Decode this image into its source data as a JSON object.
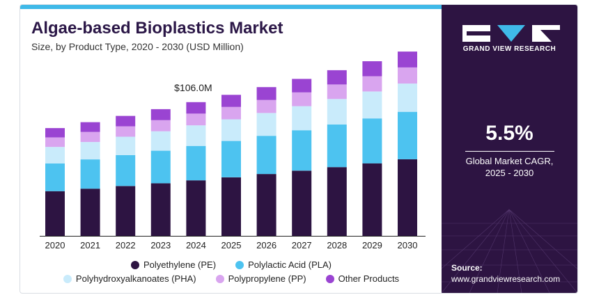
{
  "header": {
    "title": "Algae-based Bioplastics Market",
    "subtitle": "Size, by Product Type, 2020 - 2030 (USD Million)"
  },
  "colors": {
    "accent_bar": "#3fb9e8",
    "panel_bg": "#2d1442",
    "title": "#2b1747"
  },
  "chart_data": {
    "type": "bar",
    "stacked": true,
    "categories": [
      "2020",
      "2021",
      "2022",
      "2023",
      "2024",
      "2025",
      "2026",
      "2027",
      "2028",
      "2029",
      "2030"
    ],
    "series": [
      {
        "name": "Polyethylene (PE)",
        "color": "#2d1442",
        "values": [
          35.4,
          37.4,
          39.5,
          41.7,
          44.0,
          46.4,
          49.0,
          51.7,
          54.5,
          57.5,
          60.7
        ]
      },
      {
        "name": "Polylactic Acid (PLA)",
        "color": "#4dc3f0",
        "values": [
          22.0,
          23.2,
          24.5,
          25.8,
          27.3,
          28.8,
          30.3,
          32.0,
          33.8,
          35.6,
          37.6
        ]
      },
      {
        "name": "Polyhydroxyalkanoates (PHA)",
        "color": "#c9ebfb",
        "values": [
          13.1,
          13.8,
          14.6,
          15.4,
          16.3,
          17.2,
          18.1,
          19.1,
          20.2,
          21.3,
          22.4
        ]
      },
      {
        "name": "Polypropylene (PP)",
        "color": "#d9a5ef",
        "values": [
          7.5,
          7.9,
          8.3,
          8.8,
          9.3,
          9.8,
          10.3,
          10.9,
          11.5,
          12.1,
          12.8
        ]
      },
      {
        "name": "Other Products",
        "color": "#9a44d2",
        "values": [
          7.4,
          7.8,
          8.2,
          8.7,
          9.1,
          9.6,
          10.2,
          10.7,
          11.3,
          11.9,
          12.6
        ]
      }
    ],
    "annotations": [
      {
        "category": "2024",
        "label": "$106.0M"
      }
    ],
    "ylim": [
      0,
      150
    ],
    "grid": false,
    "legend_position": "bottom"
  },
  "side_panel": {
    "brand": "GRAND VIEW RESEARCH",
    "logo_icon": "gvr-logo-icon",
    "cagr_value": "5.5%",
    "cagr_label_line1": "Global Market CAGR,",
    "cagr_label_line2": "2025 - 2030",
    "source_label": "Source:",
    "source_url": "www.grandviewresearch.com"
  }
}
